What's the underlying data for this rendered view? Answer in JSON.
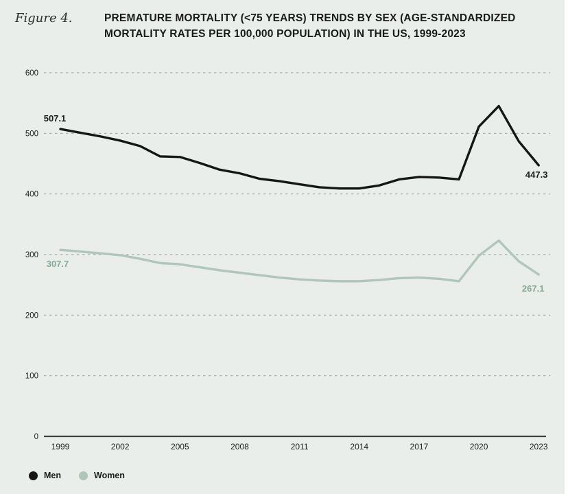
{
  "figure_label": "Figure 4.",
  "title_line1": "PREMATURE MORTALITY (<75 YEARS) TRENDS BY SEX (AGE-STANDARDIZED",
  "title_line2": "MORTALITY RATES PER 100,000 POPULATION) IN THE US, 1999-2023",
  "chart_data": {
    "type": "line",
    "title": "Premature mortality (<75 years) trends by sex (age-standardized mortality rates per 100,000 population) in the US, 1999-2023",
    "x": [
      1999,
      2000,
      2001,
      2002,
      2003,
      2004,
      2005,
      2006,
      2007,
      2008,
      2009,
      2010,
      2011,
      2012,
      2013,
      2014,
      2015,
      2016,
      2017,
      2018,
      2019,
      2020,
      2021,
      2022,
      2023
    ],
    "x_tick_years": [
      1999,
      2002,
      2005,
      2008,
      2011,
      2014,
      2017,
      2020,
      2023
    ],
    "ylim": [
      0,
      600
    ],
    "y_ticks": [
      0,
      100,
      200,
      300,
      400,
      500,
      600
    ],
    "grid": "horizontal dashed gridlines",
    "legend_position": "bottom-left",
    "series": [
      {
        "name": "Men",
        "color": "#161616",
        "label_color": "#1a1a1a",
        "start_label": "507.1",
        "end_label": "447.3",
        "values": [
          507.1,
          501,
          495,
          488,
          479,
          462,
          461,
          451,
          440,
          434,
          425,
          421,
          416,
          411,
          409,
          409,
          414,
          424,
          428,
          427,
          424,
          511,
          545,
          487,
          447.3
        ]
      },
      {
        "name": "Women",
        "color": "#b0c6ba",
        "label_color": "#86a996",
        "start_label": "307.7",
        "end_label": "267.1",
        "values": [
          307.7,
          305,
          302,
          299,
          293,
          286,
          284,
          279,
          274,
          270,
          266,
          262,
          259,
          257,
          256,
          256,
          258,
          261,
          262,
          260,
          256,
          298,
          323,
          289,
          267.1
        ]
      }
    ]
  },
  "legend": {
    "items": [
      {
        "label": "Men",
        "color": "#161616"
      },
      {
        "label": "Women",
        "color": "#b0c6ba"
      }
    ]
  },
  "colors": {
    "background": "#e9eeea",
    "gridline": "#a2aaa3",
    "axis": "#3f3f3f",
    "tick_text": "#1e1e1e"
  }
}
